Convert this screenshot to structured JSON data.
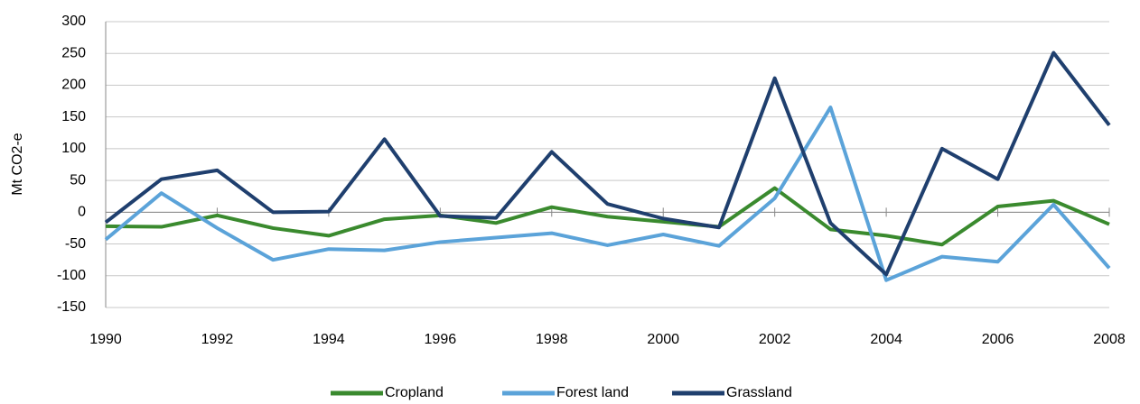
{
  "chart_data": {
    "type": "line",
    "y_label": "Mt CO2-e",
    "x": [
      1990,
      1991,
      1992,
      1993,
      1994,
      1995,
      1996,
      1997,
      1998,
      1999,
      2000,
      2001,
      2002,
      2003,
      2004,
      2005,
      2006,
      2007,
      2008
    ],
    "series": [
      {
        "name": "Cropland",
        "color": "#3a8a2e",
        "values": [
          -22,
          -23,
          -5,
          -25,
          -37,
          -11,
          -5,
          -17,
          8,
          -7,
          -15,
          -23,
          38,
          -27,
          -37,
          -51,
          9,
          18,
          -19
        ]
      },
      {
        "name": "Forest land",
        "color": "#5ba3d9",
        "values": [
          -43,
          30,
          -25,
          -75,
          -58,
          -60,
          -47,
          -40,
          -33,
          -52,
          -35,
          -53,
          22,
          165,
          -107,
          -70,
          -78,
          12,
          -88
        ]
      },
      {
        "name": "Grassland",
        "color": "#1f3f6e",
        "values": [
          -16,
          52,
          66,
          0,
          1,
          115,
          -6,
          -9,
          95,
          13,
          -10,
          -24,
          211,
          -17,
          -98,
          100,
          52,
          251,
          137
        ]
      }
    ],
    "xlim": [
      1990,
      2008
    ],
    "xticks": [
      1990,
      1992,
      1994,
      1996,
      1998,
      2000,
      2002,
      2004,
      2006,
      2008
    ],
    "ylim": [
      -150,
      300
    ],
    "yticks": [
      -150,
      -100,
      -50,
      0,
      50,
      100,
      150,
      200,
      250,
      300
    ],
    "grid": true,
    "legend": "bottom"
  }
}
